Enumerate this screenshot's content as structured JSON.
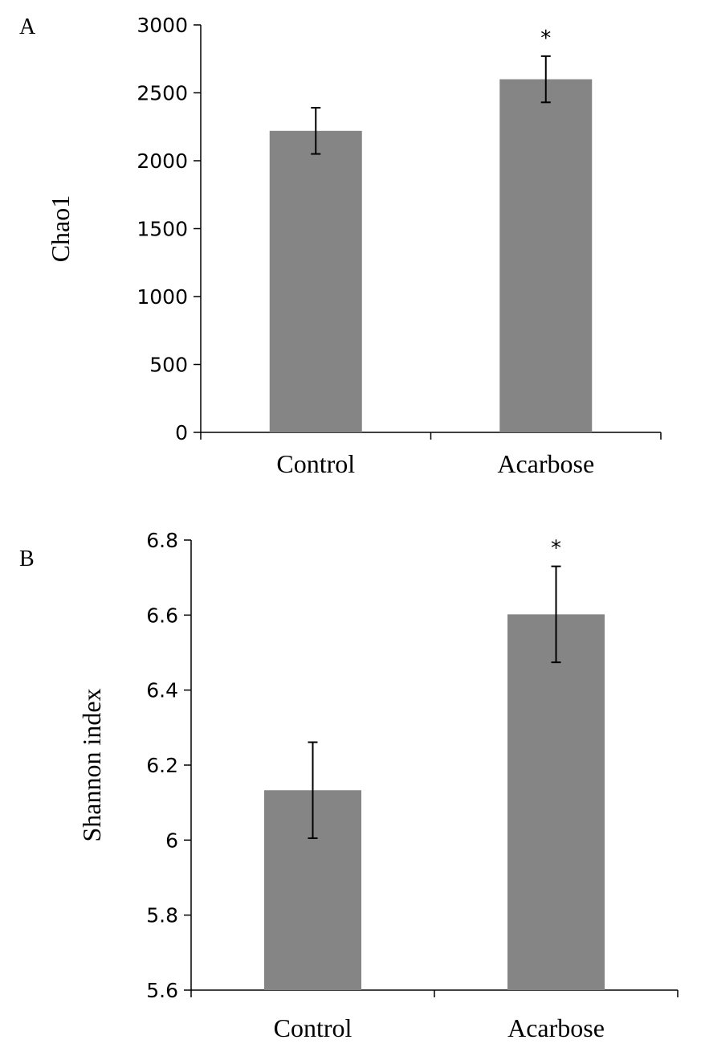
{
  "chart_data": [
    {
      "type": "bar",
      "panel_label": "A",
      "categories": [
        "Control",
        "Acarbose"
      ],
      "values": [
        2220,
        2600
      ],
      "error": [
        170,
        170
      ],
      "significance": [
        "",
        "*"
      ],
      "ylabel": "Chao1",
      "ylim": [
        0,
        3000
      ],
      "yticks": [
        0,
        500,
        1000,
        1500,
        2000,
        2500,
        3000
      ],
      "ytick_labels": [
        "0",
        "500",
        "1000",
        "1500",
        "2000",
        "2500",
        "3000"
      ],
      "bar_color": "#858585",
      "grid": false,
      "legend": "none"
    },
    {
      "type": "bar",
      "panel_label": "B",
      "categories": [
        "Control",
        "Acarbose"
      ],
      "values": [
        6.133,
        6.602
      ],
      "error": [
        0.128,
        0.128
      ],
      "significance": [
        "",
        "*"
      ],
      "ylabel": "Shannon index",
      "ylim": [
        5.6,
        6.8
      ],
      "yticks": [
        5.6,
        5.8,
        6.0,
        6.2,
        6.4,
        6.6,
        6.8
      ],
      "ytick_labels": [
        "5.6",
        "5.8",
        "6",
        "6.2",
        "6.4",
        "6.6",
        "6.8"
      ],
      "bar_color": "#858585",
      "grid": false,
      "legend": "none"
    }
  ]
}
